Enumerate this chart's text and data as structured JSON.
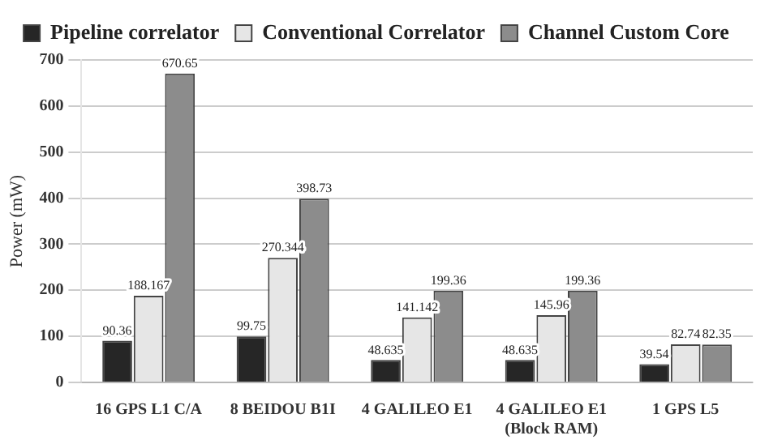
{
  "chart_data": {
    "type": "bar",
    "ylabel": "Power (mW)",
    "categories": [
      "16 GPS L1 C/A",
      "8 BEIDOU B1I",
      "4 GALILEO E1",
      "4 GALILEO E1\n(Block RAM)",
      "1 GPS L5"
    ],
    "series": [
      {
        "name": "Pipeline correlator",
        "color": "#262626",
        "values": [
          90.36,
          99.75,
          48.635,
          48.635,
          39.54
        ]
      },
      {
        "name": "Conventional Correlator",
        "color": "#e6e6e6",
        "values": [
          188.167,
          270.344,
          141.142,
          145.96,
          82.74
        ]
      },
      {
        "name": "Channel Custom Core",
        "color": "#8c8c8c",
        "values": [
          670.65,
          398.73,
          199.36,
          199.36,
          82.35
        ]
      }
    ],
    "ylim": [
      0,
      700
    ],
    "yticks": [
      0,
      100,
      200,
      300,
      400,
      500,
      600,
      700
    ],
    "grid": "y",
    "legend": "top",
    "data_labels": true
  }
}
